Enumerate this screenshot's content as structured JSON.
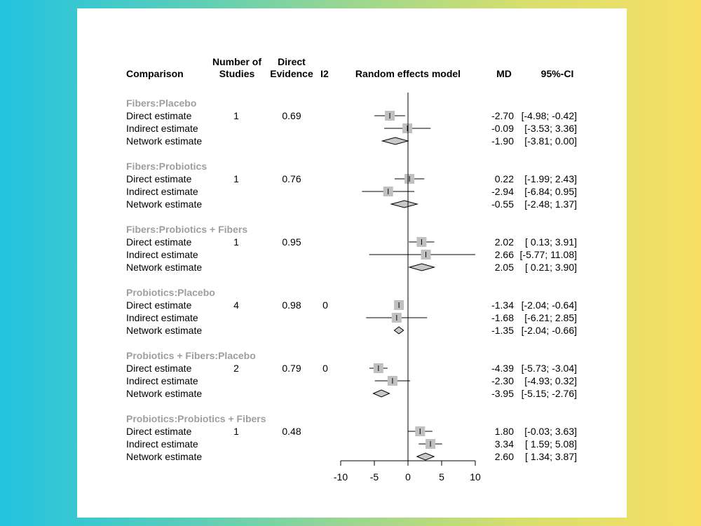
{
  "headers": {
    "comparison": "Comparison",
    "studies_line1": "Number of",
    "studies_line2": "Studies",
    "direct_line1": "Direct",
    "direct_line2": "Evidence",
    "i2": "I2",
    "model": "Random effects model",
    "md": "MD",
    "ci": "95%-CI"
  },
  "chart_data": {
    "type": "forest",
    "xlim": [
      -10,
      10
    ],
    "xticks": [
      -10,
      -5,
      0,
      5,
      10
    ],
    "reference_line": 0,
    "groups": [
      {
        "name": "Fibers:Placebo",
        "rows": [
          {
            "label": "Direct estimate",
            "studies": "1",
            "direct": "0.69",
            "i2": "",
            "md": -2.7,
            "lo": -4.98,
            "hi": -0.42,
            "md_text": "-2.70",
            "ci_text": "[-4.98; -0.42]",
            "kind": "square"
          },
          {
            "label": "Indirect estimate",
            "studies": "",
            "direct": "",
            "i2": "",
            "md": -0.09,
            "lo": -3.53,
            "hi": 3.36,
            "md_text": "-0.09",
            "ci_text": "[-3.53; 3.36]",
            "kind": "square"
          },
          {
            "label": "Network estimate",
            "studies": "",
            "direct": "",
            "i2": "",
            "md": -1.9,
            "lo": -3.81,
            "hi": 0.0,
            "md_text": "-1.90",
            "ci_text": "[-3.81; 0.00]",
            "kind": "diamond"
          }
        ]
      },
      {
        "name": "Fibers:Probiotics",
        "rows": [
          {
            "label": "Direct estimate",
            "studies": "1",
            "direct": "0.76",
            "i2": "",
            "md": 0.22,
            "lo": -1.99,
            "hi": 2.43,
            "md_text": "0.22",
            "ci_text": "[-1.99; 2.43]",
            "kind": "square"
          },
          {
            "label": "Indirect estimate",
            "studies": "",
            "direct": "",
            "i2": "",
            "md": -2.94,
            "lo": -6.84,
            "hi": 0.95,
            "md_text": "-2.94",
            "ci_text": "[-6.84; 0.95]",
            "kind": "square"
          },
          {
            "label": "Network estimate",
            "studies": "",
            "direct": "",
            "i2": "",
            "md": -0.55,
            "lo": -2.48,
            "hi": 1.37,
            "md_text": "-0.55",
            "ci_text": "[-2.48; 1.37]",
            "kind": "diamond"
          }
        ]
      },
      {
        "name": "Fibers:Probiotics + Fibers",
        "rows": [
          {
            "label": "Direct estimate",
            "studies": "1",
            "direct": "0.95",
            "i2": "",
            "md": 2.02,
            "lo": 0.13,
            "hi": 3.91,
            "md_text": "2.02",
            "ci_text": "[ 0.13; 3.91]",
            "kind": "square"
          },
          {
            "label": "Indirect estimate",
            "studies": "",
            "direct": "",
            "i2": "",
            "md": 2.66,
            "lo": -5.77,
            "hi": 11.08,
            "md_text": "2.66",
            "ci_text": "[-5.77; 11.08]",
            "kind": "square"
          },
          {
            "label": "Network estimate",
            "studies": "",
            "direct": "",
            "i2": "",
            "md": 2.05,
            "lo": 0.21,
            "hi": 3.9,
            "md_text": "2.05",
            "ci_text": "[ 0.21; 3.90]",
            "kind": "diamond"
          }
        ]
      },
      {
        "name": "Probiotics:Placebo",
        "rows": [
          {
            "label": "Direct estimate",
            "studies": "4",
            "direct": "0.98",
            "i2": "0",
            "md": -1.34,
            "lo": -2.04,
            "hi": -0.64,
            "md_text": "-1.34",
            "ci_text": "[-2.04; -0.64]",
            "kind": "square"
          },
          {
            "label": "Indirect estimate",
            "studies": "",
            "direct": "",
            "i2": "",
            "md": -1.68,
            "lo": -6.21,
            "hi": 2.85,
            "md_text": "-1.68",
            "ci_text": "[-6.21; 2.85]",
            "kind": "square"
          },
          {
            "label": "Network estimate",
            "studies": "",
            "direct": "",
            "i2": "",
            "md": -1.35,
            "lo": -2.04,
            "hi": -0.66,
            "md_text": "-1.35",
            "ci_text": "[-2.04; -0.66]",
            "kind": "diamond"
          }
        ]
      },
      {
        "name": "Probiotics + Fibers:Placebo",
        "rows": [
          {
            "label": "Direct estimate",
            "studies": "2",
            "direct": "0.79",
            "i2": "0",
            "md": -4.39,
            "lo": -5.73,
            "hi": -3.04,
            "md_text": "-4.39",
            "ci_text": "[-5.73; -3.04]",
            "kind": "square"
          },
          {
            "label": "Indirect estimate",
            "studies": "",
            "direct": "",
            "i2": "",
            "md": -2.3,
            "lo": -4.93,
            "hi": 0.32,
            "md_text": "-2.30",
            "ci_text": "[-4.93; 0.32]",
            "kind": "square"
          },
          {
            "label": "Network estimate",
            "studies": "",
            "direct": "",
            "i2": "",
            "md": -3.95,
            "lo": -5.15,
            "hi": -2.76,
            "md_text": "-3.95",
            "ci_text": "[-5.15; -2.76]",
            "kind": "diamond"
          }
        ]
      },
      {
        "name": "Probiotics:Probiotics + Fibers",
        "rows": [
          {
            "label": "Direct estimate",
            "studies": "1",
            "direct": "0.48",
            "i2": "",
            "md": 1.8,
            "lo": -0.03,
            "hi": 3.63,
            "md_text": "1.80",
            "ci_text": "[-0.03; 3.63]",
            "kind": "square"
          },
          {
            "label": "Indirect estimate",
            "studies": "",
            "direct": "",
            "i2": "",
            "md": 3.34,
            "lo": 1.59,
            "hi": 5.08,
            "md_text": "3.34",
            "ci_text": "[ 1.59; 5.08]",
            "kind": "square"
          },
          {
            "label": "Network estimate",
            "studies": "",
            "direct": "",
            "i2": "",
            "md": 2.6,
            "lo": 1.34,
            "hi": 3.87,
            "md_text": "2.60",
            "ci_text": "[ 1.34; 3.87]",
            "kind": "diamond"
          }
        ]
      }
    ],
    "colors": {
      "square_fill": "#c0c0c0",
      "diamond_fill": "#c8c8c8",
      "group_label": "#9e9e9e",
      "line": "#000000"
    }
  }
}
